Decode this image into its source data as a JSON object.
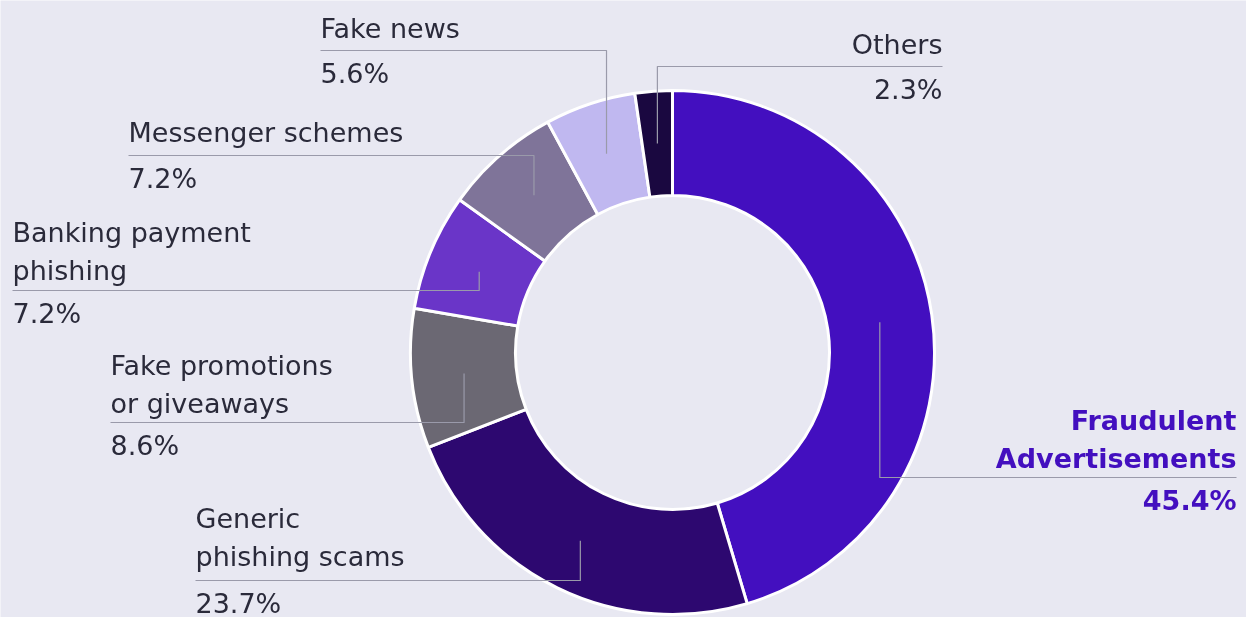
{
  "chart_data": {
    "type": "donut",
    "categories": [
      "Fraudulent Advertisements",
      "Generic phishing scams",
      "Fake promotions or giveaways",
      "Banking payment phishing",
      "Messenger schemes",
      "Fake news",
      "Others"
    ],
    "values": [
      45.4,
      23.7,
      8.6,
      7.2,
      7.2,
      5.6,
      2.3
    ],
    "value_labels": [
      "45.4%",
      "23.7%",
      "8.6%",
      "7.2%",
      "7.2%",
      "5.6%",
      "2.3%"
    ],
    "colors": [
      "#430fbf",
      "#2d0870",
      "#6b6873",
      "#6a35c8",
      "#7f7499",
      "#c0b8f0",
      "#1a0840"
    ]
  }
}
